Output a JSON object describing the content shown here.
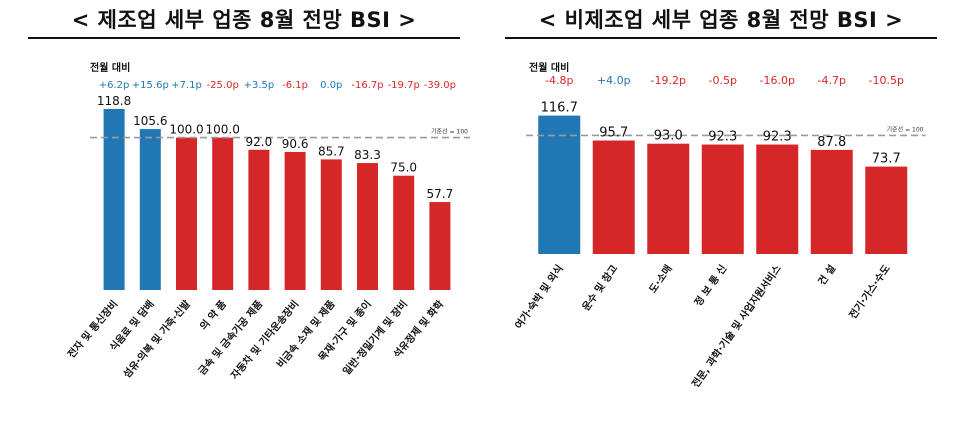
{
  "chart_data": [
    {
      "type": "bar",
      "title": "< 제조업 세부 업종 8월 전망 BSI >",
      "change_label": "전월 대비",
      "baseline_label": "기준선 = 100",
      "baseline": 100,
      "categories": [
        "전자 및 통신장비",
        "식음료 및 담배",
        "섬유·의복 및 가죽·신발",
        "의 약 품",
        "금속 및 금속가공 제품",
        "자동차 및 기타운송장비",
        "비금속 소재 및 제품",
        "목재·가구 및 종이",
        "일반·정밀기계 및 장비",
        "석유정제 및 화학"
      ],
      "values": [
        118.8,
        105.6,
        100.0,
        100.0,
        92.0,
        90.6,
        85.7,
        83.3,
        75.0,
        57.7
      ],
      "value_labels": [
        "118.8",
        "105.6",
        "100.0",
        "100.0",
        "92.0",
        "90.6",
        "85.7",
        "83.3",
        "75.0",
        "57.7"
      ],
      "changes": [
        "+6.2p",
        "+15.6p",
        "+7.1p",
        "-25.0p",
        "+3.5p",
        "-6.1p",
        "0.0p",
        "-16.7p",
        "-19.7p",
        "-39.0p"
      ],
      "bar_colors": [
        "#2077b4",
        "#2077b4",
        "#d62728",
        "#d62728",
        "#d62728",
        "#d62728",
        "#d62728",
        "#d62728",
        "#d62728",
        "#d62728"
      ],
      "change_colors": [
        "#2077b4",
        "#2077b4",
        "#2077b4",
        "#d62728",
        "#2077b4",
        "#d62728",
        "#2077b4",
        "#d62728",
        "#d62728",
        "#d62728"
      ],
      "ylim": [
        0,
        125
      ]
    },
    {
      "type": "bar",
      "title": "< 비제조업 세부 업종 8월 전망 BSI >",
      "change_label": "전월 대비",
      "baseline_label": "기준선 = 100",
      "baseline": 100,
      "categories": [
        "여가·숙박 및 외식",
        "운수 및 창고",
        "도·소매",
        "정 보 통 신",
        "전문, 과학·기술 및 사업지원서비스",
        "건 설",
        "전기·가스·수도"
      ],
      "values": [
        116.7,
        95.7,
        93.0,
        92.3,
        92.3,
        87.8,
        73.7
      ],
      "value_labels": [
        "116.7",
        "95.7",
        "93.0",
        "92.3",
        "92.3",
        "87.8",
        "73.7"
      ],
      "changes": [
        "-4.8p",
        "+4.0p",
        "-19.2p",
        "-0.5p",
        "-16.0p",
        "-4.7p",
        "-10.5p"
      ],
      "bar_colors": [
        "#2077b4",
        "#d62728",
        "#d62728",
        "#d62728",
        "#d62728",
        "#d62728",
        "#d62728"
      ],
      "change_colors": [
        "#d62728",
        "#2077b4",
        "#d62728",
        "#d62728",
        "#d62728",
        "#d62728",
        "#d62728"
      ],
      "ylim": [
        0,
        125
      ]
    }
  ]
}
